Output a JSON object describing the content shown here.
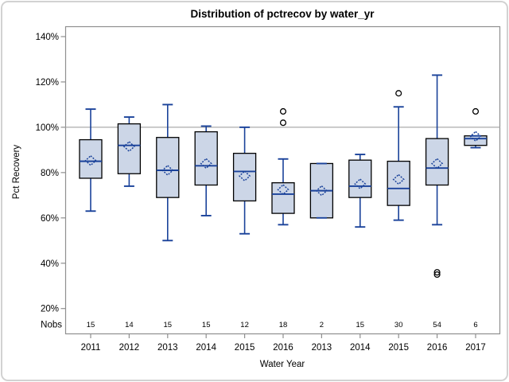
{
  "window": {
    "background": "#ffffff",
    "outer_border_color": "#d2d2d2"
  },
  "chart_data": {
    "type": "box",
    "title": "Distribution of pctrecov by water_yr",
    "xlabel": "Water Year",
    "ylabel": "Pct Recovery",
    "nobs_label": "Nobs",
    "grid": false,
    "legend": "none",
    "reference_line": 100,
    "ylim": [
      9,
      145
    ],
    "yticks": [
      140,
      120,
      100,
      80,
      60,
      40,
      20
    ],
    "ytick_labels": [
      "140%",
      "120%",
      "100%",
      "80%",
      "60%",
      "40%",
      "20%"
    ],
    "categories": [
      "2011",
      "2012",
      "2013",
      "2014",
      "2015",
      "2016",
      "2013",
      "2014",
      "2015",
      "2016",
      "2017"
    ],
    "series": [
      {
        "year": "2011",
        "nobs": 15,
        "whisker_low": 63,
        "q1": 77.5,
        "median": 85,
        "q3": 94.5,
        "whisker_high": 108,
        "mean": 85.3,
        "outliers": []
      },
      {
        "year": "2012",
        "nobs": 14,
        "whisker_low": 74,
        "q1": 79.5,
        "median": 92,
        "q3": 101.5,
        "whisker_high": 104.5,
        "mean": 91.5,
        "outliers": []
      },
      {
        "year": "2013",
        "nobs": 15,
        "whisker_low": 50,
        "q1": 69,
        "median": 81,
        "q3": 95.5,
        "whisker_high": 110,
        "mean": 81,
        "outliers": []
      },
      {
        "year": "2014",
        "nobs": 15,
        "whisker_low": 61,
        "q1": 74.5,
        "median": 83,
        "q3": 98,
        "whisker_high": 100.5,
        "mean": 84,
        "outliers": []
      },
      {
        "year": "2015",
        "nobs": 12,
        "whisker_low": 53,
        "q1": 67.5,
        "median": 80.5,
        "q3": 88.5,
        "whisker_high": 100,
        "mean": 78.5,
        "outliers": []
      },
      {
        "year": "2016",
        "nobs": 18,
        "whisker_low": 57,
        "q1": 62,
        "median": 70.5,
        "q3": 75.5,
        "whisker_high": 86,
        "mean": 72.5,
        "outliers": [
          102,
          107
        ]
      },
      {
        "year": "2013",
        "nobs": 2,
        "whisker_low": 60,
        "q1": 60,
        "median": 72,
        "q3": 84,
        "whisker_high": 84,
        "mean": 72,
        "outliers": []
      },
      {
        "year": "2014",
        "nobs": 15,
        "whisker_low": 56,
        "q1": 69,
        "median": 74,
        "q3": 85.5,
        "whisker_high": 88,
        "mean": 75,
        "outliers": []
      },
      {
        "year": "2015",
        "nobs": 30,
        "whisker_low": 59,
        "q1": 65.5,
        "median": 73,
        "q3": 85,
        "whisker_high": 109,
        "mean": 77,
        "outliers": [
          115
        ]
      },
      {
        "year": "2016",
        "nobs": 54,
        "whisker_low": 57,
        "q1": 74.5,
        "median": 82,
        "q3": 95,
        "whisker_high": 123,
        "mean": 84,
        "outliers": [
          35,
          36
        ]
      },
      {
        "year": "2017",
        "nobs": 6,
        "whisker_low": 91,
        "q1": 92,
        "median": 95,
        "q3": 96.2,
        "whisker_high": 96.2,
        "mean": 96,
        "outliers": [
          107
        ]
      }
    ],
    "colors": {
      "box_fill": "#ccd6e7",
      "box_border": "#000000",
      "whisker_line": "#1a429a",
      "median_line": "#1a429a",
      "mean_marker": "#1a429a",
      "outlier_stroke": "#000000",
      "reference_line": "#ababab",
      "frame": "#8f8f8f",
      "tick": "#8f8f8f",
      "text": "#000000"
    }
  }
}
